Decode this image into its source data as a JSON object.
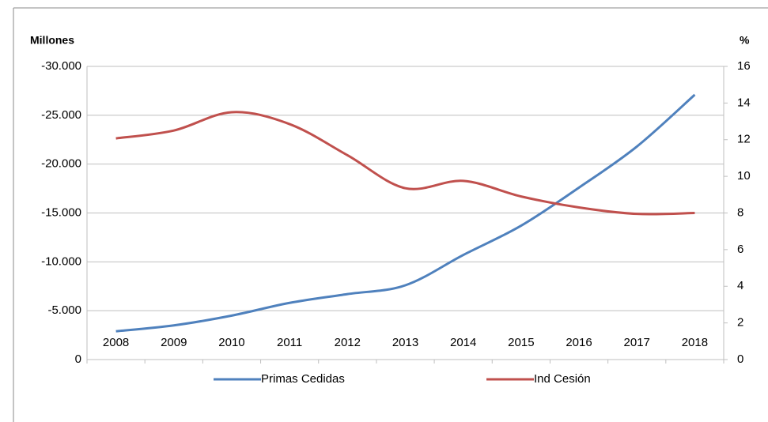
{
  "chart_data": {
    "type": "line",
    "y_label": "Millones",
    "y2_label": "%",
    "categories": [
      "2008",
      "2009",
      "2010",
      "2011",
      "2012",
      "2013",
      "2014",
      "2015",
      "2016",
      "2017",
      "2018"
    ],
    "series": [
      {
        "name": "Primas Cedidas",
        "color": "#4f81bd",
        "values": [
          -2900,
          -3500,
          -4500,
          -5800,
          -6700,
          -7600,
          -10700,
          -13700,
          -17600,
          -21800,
          -27100
        ]
      },
      {
        "name": "Ind Cesión",
        "color": "#c0504d",
        "axis": "y2",
        "values": [
          12.07,
          12.5,
          13.5,
          12.85,
          11.15,
          9.35,
          9.75,
          8.9,
          8.3,
          7.95,
          8.0
        ]
      }
    ],
    "ylim": [
      0,
      -30000
    ],
    "yticks": [
      {
        "value": -30000,
        "label": "-30.000"
      },
      {
        "value": -25000,
        "label": "-25.000"
      },
      {
        "value": -20000,
        "label": "-20.000"
      },
      {
        "value": -15000,
        "label": "-15.000"
      },
      {
        "value": -10000,
        "label": "-10.000"
      },
      {
        "value": -5000,
        "label": "-5.000"
      },
      0
    ],
    "y2lim": [
      0,
      16
    ],
    "y2ticks": [
      0,
      2,
      4,
      6,
      8,
      10,
      12,
      14,
      16
    ],
    "grid": true
  }
}
